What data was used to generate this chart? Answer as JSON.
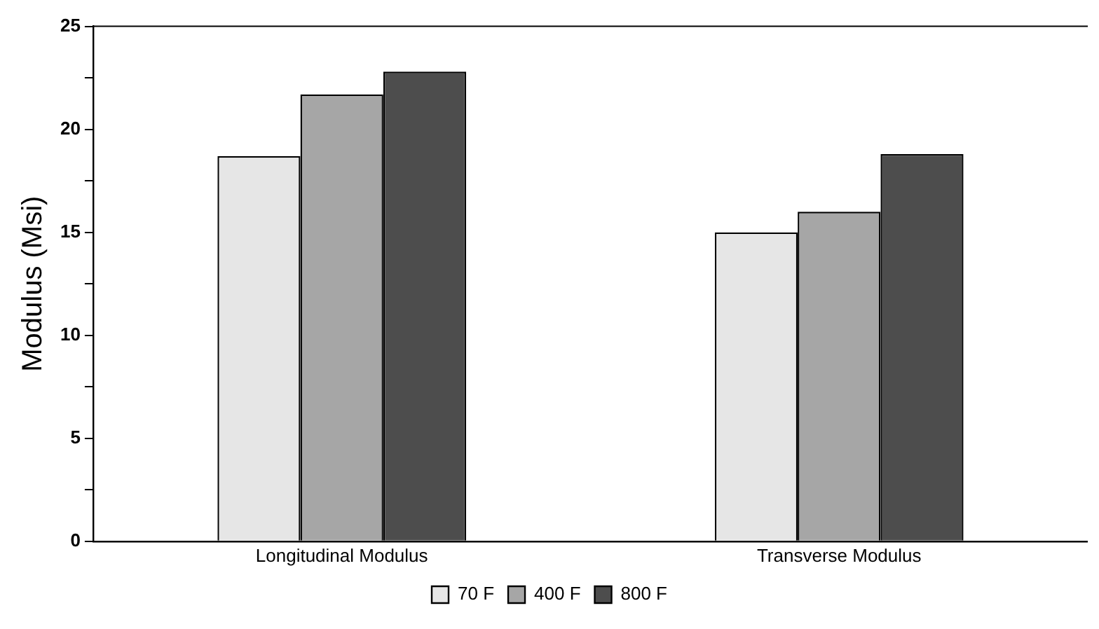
{
  "chart_data": {
    "type": "bar",
    "ylabel": "Modulus (Msi)",
    "categories": [
      "Longitudinal Modulus",
      "Transverse Modulus"
    ],
    "series": [
      {
        "name": "70 F",
        "color": "#e6e6e6",
        "values": [
          18.7,
          15.0
        ]
      },
      {
        "name": "400 F",
        "color": "#a6a6a6",
        "values": [
          21.7,
          16.0
        ]
      },
      {
        "name": "800 F",
        "color": "#4d4d4d",
        "values": [
          22.8,
          18.8
        ]
      }
    ],
    "ylim": [
      0,
      25
    ],
    "yticks": [
      0,
      {
        "value": 2.5,
        "label": null
      },
      5,
      {
        "value": 7.5,
        "label": null
      },
      10,
      {
        "value": 12.5,
        "label": null
      },
      15,
      {
        "value": 17.5,
        "label": null
      },
      20,
      {
        "value": 22.5,
        "label": null
      },
      25
    ],
    "grid": false,
    "legend": "bottom"
  }
}
